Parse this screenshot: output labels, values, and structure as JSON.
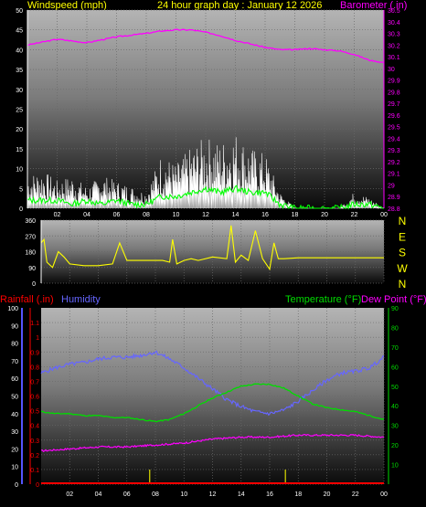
{
  "header": {
    "wind_label": "Windspeed (mph)",
    "title": "24 hour graph day : January 12 2026",
    "baro_label": "Barometer (.in)"
  },
  "footer": {
    "rain_label": "Rainfall (.in)",
    "humidity_label": "Humidity",
    "temp_label": "Temperature (°F)",
    "dew_label": "Dew Point (°F)"
  },
  "colors": {
    "text_yellow": "#ffff00",
    "barometer": "#ff00ff",
    "wind_gust": "#ffffff",
    "wind_avg": "#00ff00",
    "direction": "#ffff00",
    "rain": "#ff0000",
    "humidity": "#6666ff",
    "temperature": "#00dd00",
    "dewpoint": "#ff00ff",
    "rain_ticks": "#dddd00",
    "axis_blue": "#5555ff"
  },
  "chart_data": [
    {
      "type": "line",
      "panel": "wind-barometer",
      "x_tick_labels": [
        "02",
        "04",
        "06",
        "08",
        "10",
        "12",
        "14",
        "16",
        "18",
        "20",
        "22",
        "00"
      ],
      "y_left_label": "Windspeed (mph)",
      "y_left_ticks": [
        0,
        5,
        10,
        15,
        20,
        25,
        30,
        35,
        40,
        45,
        50
      ],
      "y_left_range": [
        0,
        50
      ],
      "y_right_label": "Barometer (.in)",
      "y_right_ticks": [
        "28.8",
        "28.9",
        "29",
        "29.1",
        "29.2",
        "29.3",
        "29.4",
        "29.5",
        "29.6",
        "29.7",
        "29.8",
        "29.9",
        "30",
        "30.1",
        "30.2",
        "30.3",
        "30.4",
        "30.5"
      ],
      "y_right_range": [
        28.8,
        30.5
      ],
      "x_range_hours": [
        0,
        24
      ],
      "series": [
        {
          "name": "Barometer",
          "axis": "right",
          "x": [
            0,
            2,
            4,
            6,
            8,
            9,
            10,
            11,
            12,
            13,
            14,
            15,
            16,
            17,
            18,
            19,
            20,
            21,
            22,
            23,
            24
          ],
          "values": [
            30.2,
            30.25,
            30.22,
            30.27,
            30.3,
            30.32,
            30.33,
            30.33,
            30.31,
            30.28,
            30.24,
            30.21,
            30.18,
            30.16,
            30.16,
            30.17,
            30.16,
            30.15,
            30.12,
            30.07,
            30.05
          ]
        },
        {
          "name": "Wind gust",
          "axis": "left",
          "x": [
            0,
            1,
            2,
            3,
            4,
            5,
            6,
            7,
            8,
            9,
            10,
            11,
            12,
            13,
            14,
            15,
            16,
            17,
            18,
            19,
            20,
            21,
            22,
            23,
            24
          ],
          "values": [
            6,
            7,
            5,
            6,
            4,
            6,
            5,
            4,
            3,
            10,
            8,
            11,
            13,
            12,
            14,
            11,
            10,
            3,
            0,
            0,
            0,
            0,
            3,
            2,
            0
          ]
        },
        {
          "name": "Wind average",
          "axis": "left",
          "x": [
            0,
            1,
            2,
            3,
            4,
            5,
            6,
            7,
            8,
            9,
            10,
            11,
            12,
            13,
            14,
            15,
            16,
            17,
            18,
            19,
            20,
            21,
            22,
            23,
            24
          ],
          "values": [
            2,
            2,
            2,
            1,
            2,
            1,
            2,
            1,
            1,
            3,
            3,
            4,
            5,
            4,
            5,
            4,
            4,
            1,
            0,
            0,
            0,
            0,
            1,
            1,
            0
          ]
        }
      ]
    },
    {
      "type": "line",
      "panel": "wind-direction",
      "y_left_ticks": [
        0,
        90,
        180,
        270,
        360
      ],
      "y_range": [
        0,
        360
      ],
      "y_right_labels": [
        "N",
        "W",
        "S",
        "E",
        "N"
      ],
      "x_range_hours": [
        0,
        24
      ],
      "series": [
        {
          "name": "Wind direction",
          "x": [
            0,
            0.2,
            0.4,
            0.8,
            1.2,
            1.6,
            2,
            3,
            4,
            5,
            5.5,
            6,
            7,
            8,
            8.5,
            9,
            9.2,
            9.5,
            10,
            10.5,
            11,
            12,
            13,
            13.3,
            13.6,
            14,
            14.5,
            15,
            15.5,
            16,
            16.3,
            16.6,
            17,
            18,
            19,
            20,
            21,
            22,
            23,
            24
          ],
          "values": [
            230,
            250,
            120,
            90,
            180,
            150,
            110,
            100,
            100,
            110,
            230,
            130,
            130,
            130,
            130,
            120,
            250,
            110,
            130,
            140,
            130,
            150,
            140,
            330,
            120,
            160,
            130,
            300,
            140,
            80,
            230,
            140,
            140,
            145,
            145,
            145,
            145,
            145,
            145,
            145
          ]
        }
      ]
    },
    {
      "type": "line",
      "panel": "temp-humidity-rain",
      "x_tick_labels": [
        "02",
        "04",
        "06",
        "08",
        "10",
        "12",
        "14",
        "16",
        "18",
        "20",
        "22",
        "00"
      ],
      "y_left_label": "Rainfall (.in)",
      "y_left_ticks": [
        "0",
        "0.1",
        "0.2",
        "0.3",
        "0.4",
        "0.5",
        "0.6",
        "0.7",
        "0.8",
        "0.9",
        "1",
        "1.1"
      ],
      "y_left_range": [
        0,
        1.2
      ],
      "y_humidity_ticks": [
        0,
        10,
        20,
        30,
        40,
        50,
        60,
        70,
        80,
        90,
        100
      ],
      "y_humidity_range": [
        0,
        100
      ],
      "y_right_label": "Temperature (°F)",
      "y_right_ticks": [
        10,
        20,
        30,
        40,
        50,
        60,
        70,
        80,
        90
      ],
      "y_right_range": [
        0,
        90
      ],
      "x_range_hours": [
        0,
        24
      ],
      "series": [
        {
          "name": "Humidity",
          "axis": "humidity",
          "x": [
            0,
            1,
            2,
            3,
            4,
            5,
            6,
            7,
            8,
            9,
            10,
            11,
            12,
            13,
            14,
            15,
            16,
            17,
            18,
            19,
            20,
            21,
            22,
            23,
            24
          ],
          "values": [
            63,
            66,
            68,
            69,
            71,
            72,
            72,
            73,
            75,
            71,
            66,
            60,
            54,
            48,
            44,
            41,
            40,
            42,
            47,
            53,
            59,
            63,
            64,
            66,
            72
          ]
        },
        {
          "name": "Temperature",
          "axis": "right",
          "x": [
            0,
            1,
            2,
            3,
            4,
            5,
            6,
            7,
            8,
            9,
            10,
            11,
            12,
            13,
            14,
            15,
            16,
            17,
            18,
            19,
            20,
            21,
            22,
            23,
            24
          ],
          "values": [
            37,
            36,
            36,
            35,
            35,
            34,
            34,
            33,
            32,
            33,
            36,
            40,
            44,
            47,
            50,
            51,
            51,
            49,
            45,
            41,
            39,
            38,
            37,
            35,
            33
          ]
        },
        {
          "name": "Dew Point",
          "axis": "right",
          "x": [
            0,
            2,
            4,
            6,
            8,
            10,
            12,
            14,
            16,
            18,
            20,
            22,
            24
          ],
          "values": [
            17,
            18,
            19,
            19,
            20,
            21,
            23,
            24,
            24,
            25,
            25,
            25,
            24
          ]
        },
        {
          "name": "Rainfall",
          "axis": "left",
          "x": [
            0,
            24
          ],
          "values": [
            0,
            0
          ]
        }
      ]
    }
  ]
}
